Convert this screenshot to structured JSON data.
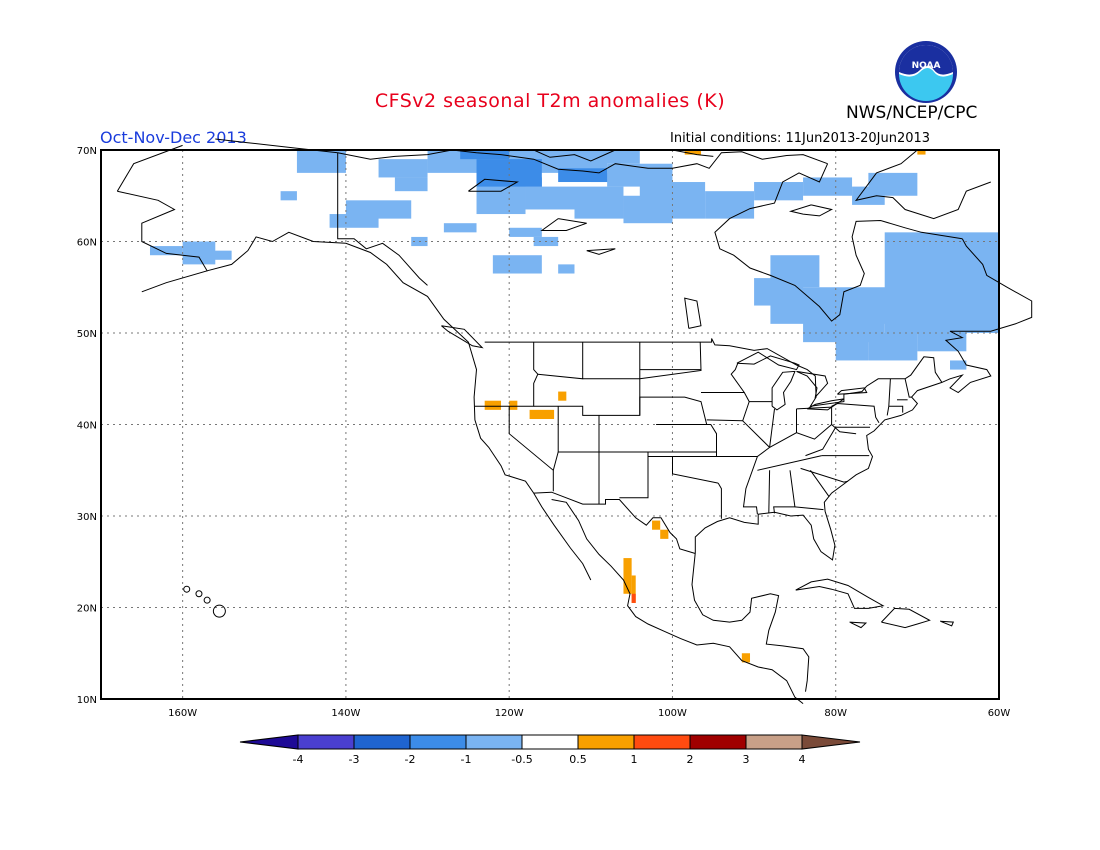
{
  "header": {
    "title": "CFSv2 seasonal T2m anomalies (K)",
    "org": "NWS/NCEP/CPC",
    "logo_text": "NOAA",
    "period": "Oct-Nov-Dec 2013",
    "initial_conditions": "Initial conditions: 11Jun2013-20Jun2013"
  },
  "map": {
    "lon_range": [
      -170,
      -60
    ],
    "lat_range": [
      10,
      70
    ],
    "lat_ticks": [
      "10N",
      "20N",
      "30N",
      "40N",
      "50N",
      "60N",
      "70N"
    ],
    "lon_ticks": [
      "160W",
      "140W",
      "120W",
      "100W",
      "80W",
      "60W"
    ],
    "grid_lines": true
  },
  "colorbar": {
    "colors": [
      "#1e0a96",
      "#4a3fd0",
      "#1f64d0",
      "#3c8ce8",
      "#7ab4f2",
      "#ffffff",
      "#f8a000",
      "#ff4b10",
      "#a00000",
      "#c8a088",
      "#7a4a38"
    ],
    "labels": [
      "-4",
      "-3",
      "-2",
      "-1",
      "-0.5",
      "0.5",
      "1",
      "2",
      "3",
      "4"
    ]
  },
  "anomalies": {
    "color_light_blue": "#7ab4f2",
    "color_blue": "#3c8ce8",
    "color_orange": "#f8a000",
    "color_red": "#ff4b10"
  }
}
